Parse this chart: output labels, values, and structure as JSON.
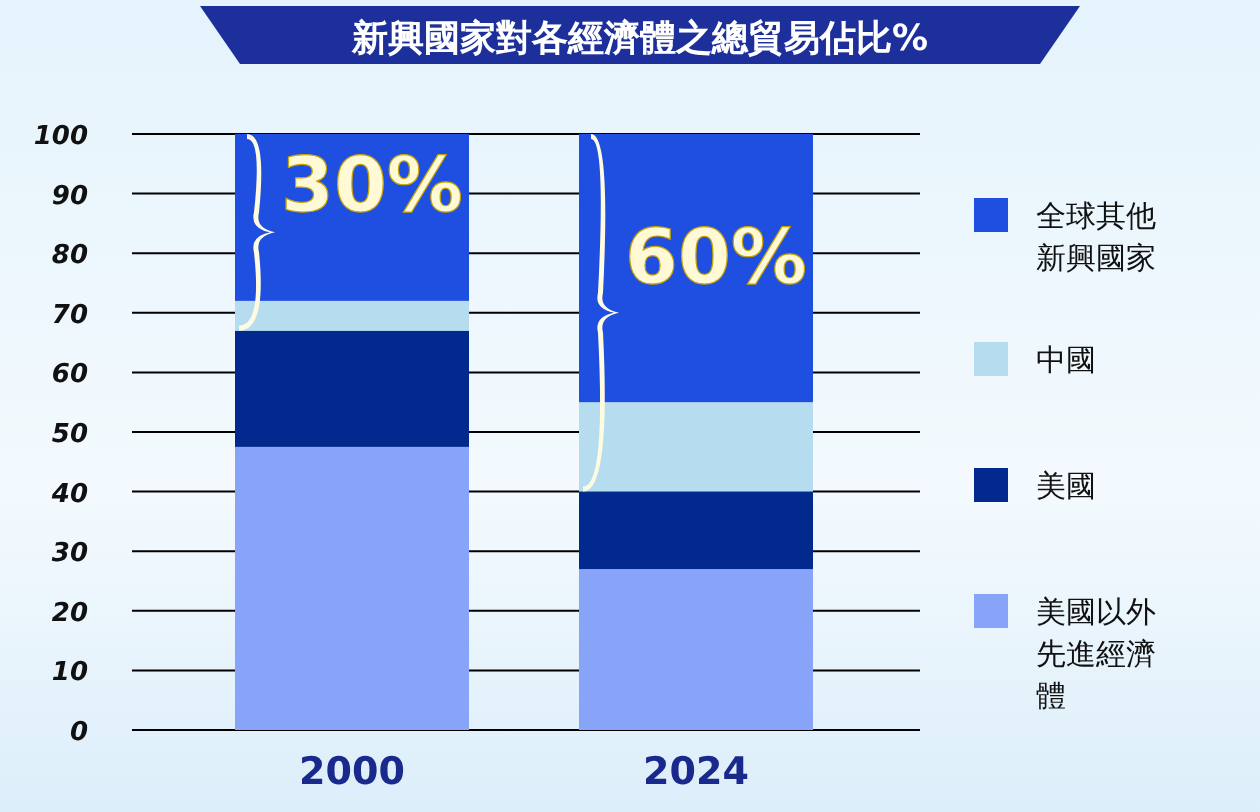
{
  "chart_data": {
    "type": "bar",
    "stacked": true,
    "title": "新興國家對各經濟體之總貿易佔比%",
    "categories": [
      "2000",
      "2024"
    ],
    "series": [
      {
        "name": "美國以外先進經濟體",
        "color": "#88a4f8",
        "values": [
          47.5,
          27
        ]
      },
      {
        "name": "美國",
        "color": "#01298e",
        "values": [
          19.5,
          13
        ]
      },
      {
        "name": "中國",
        "color": "#b5dcef",
        "values": [
          5,
          15
        ]
      },
      {
        "name": "全球其他新興國家",
        "color": "#1f4fe0",
        "values": [
          28,
          45
        ]
      }
    ],
    "annotations": [
      "30%",
      "60%"
    ],
    "ylim": [
      0,
      100
    ],
    "yticks": [
      0,
      10,
      20,
      30,
      40,
      50,
      60,
      70,
      80,
      90,
      100
    ],
    "grid": "y",
    "legend": "right"
  }
}
